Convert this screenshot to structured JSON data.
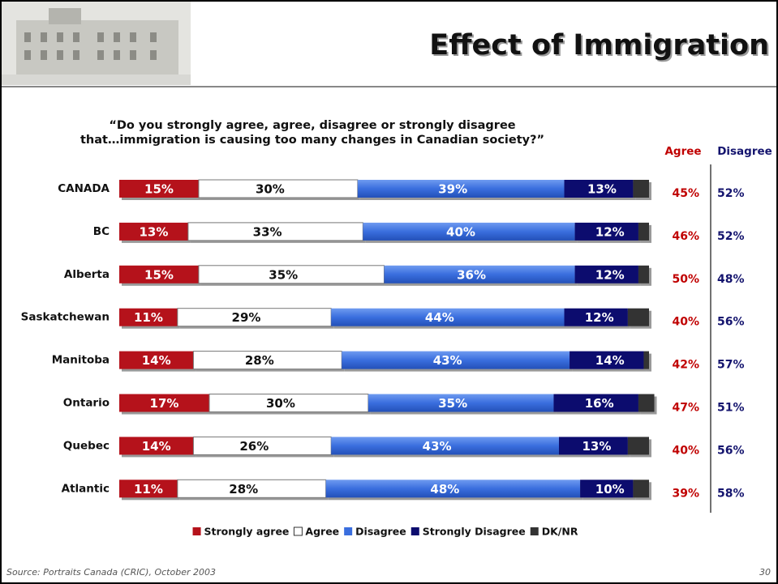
{
  "chart_data": {
    "type": "stacked-bar",
    "title": "Effect of Immigration",
    "subtitle": [
      "“Do you strongly agree, agree, disagree or strongly disagree",
      "that…immigration is causing too many changes in Canadian society?”"
    ],
    "categories": [
      "CANADA",
      "BC",
      "Alberta",
      "Saskatchewan",
      "Manitoba",
      "Ontario",
      "Quebec",
      "Atlantic"
    ],
    "xlim": [
      0,
      100
    ],
    "series": [
      {
        "name": "Strongly agree",
        "color": "#b5121b",
        "values": [
          15,
          13,
          15,
          11,
          14,
          17,
          14,
          11
        ],
        "value_labels": [
          "15%",
          "13%",
          "15%",
          "11%",
          "14%",
          "17%",
          "14%",
          "11%"
        ]
      },
      {
        "name": "Agree",
        "color": "#ffffff",
        "values": [
          30,
          33,
          35,
          29,
          28,
          30,
          26,
          28
        ],
        "value_labels": [
          "30%",
          "33%",
          "35%",
          "29%",
          "28%",
          "30%",
          "26%",
          "28%"
        ]
      },
      {
        "name": "Disagree",
        "color": "#3a6ede",
        "values": [
          39,
          40,
          36,
          44,
          43,
          35,
          43,
          48
        ],
        "value_labels": [
          "39%",
          "40%",
          "36%",
          "44%",
          "43%",
          "35%",
          "43%",
          "48%"
        ]
      },
      {
        "name": "Strongly Disagree",
        "color": "#0c0c6e",
        "values": [
          13,
          12,
          12,
          12,
          14,
          16,
          13,
          10
        ],
        "value_labels": [
          "13%",
          "12%",
          "12%",
          "12%",
          "14%",
          "16%",
          "13%",
          "10%"
        ]
      },
      {
        "name": "DK/NR",
        "color": "#333333",
        "values": [
          3,
          2,
          2,
          4,
          1,
          3,
          4,
          3
        ]
      }
    ],
    "totals": [
      {
        "name": "Agree",
        "color": "#c00000",
        "values": [
          45,
          46,
          50,
          40,
          42,
          47,
          40,
          39
        ],
        "value_labels": [
          "45%",
          "46%",
          "50%",
          "40%",
          "42%",
          "47%",
          "40%",
          "39%"
        ]
      },
      {
        "name": "Disagree",
        "color": "#14146e",
        "values": [
          52,
          52,
          48,
          56,
          57,
          51,
          56,
          58
        ],
        "value_labels": [
          "52%",
          "52%",
          "48%",
          "56%",
          "57%",
          "51%",
          "56%",
          "58%"
        ]
      }
    ]
  },
  "footer": {
    "source": "Source: Portraits Canada (CRIC), October 2003",
    "page": "30"
  }
}
